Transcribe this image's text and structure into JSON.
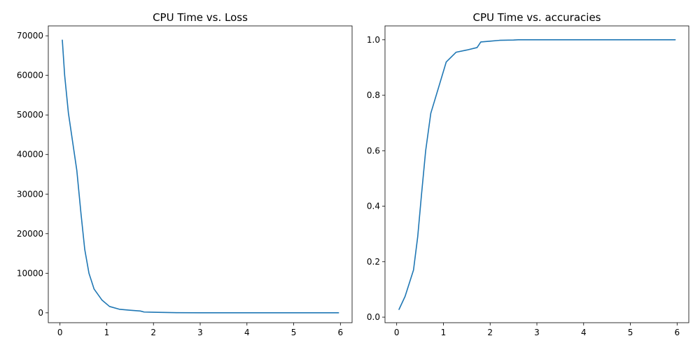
{
  "chart_data": [
    {
      "type": "line",
      "title": "CPU Time vs. Loss",
      "xlabel": "",
      "ylabel": "",
      "xlim": [
        -0.25,
        6.25
      ],
      "ylim": [
        -2500,
        72500
      ],
      "xticks": [
        0,
        1,
        2,
        3,
        4,
        5,
        6
      ],
      "yticks": [
        0,
        10000,
        20000,
        30000,
        40000,
        50000,
        60000,
        70000
      ],
      "grid": false,
      "legend": "none",
      "color": "#1f77b4",
      "series": [
        {
          "x": [
            0.05,
            0.1,
            0.18,
            0.36,
            0.45,
            0.53,
            0.62,
            0.73,
            0.9,
            1.06,
            1.27,
            1.5,
            1.72,
            1.8,
            2.0,
            2.2,
            2.5,
            3.0,
            4.0,
            5.0,
            5.96
          ],
          "y": [
            68900,
            60000,
            50500,
            36000,
            25000,
            16000,
            10000,
            6000,
            3200,
            1600,
            900,
            650,
            450,
            200,
            150,
            100,
            30,
            10,
            5,
            5,
            5
          ]
        }
      ]
    },
    {
      "type": "line",
      "title": "CPU Time vs. accuracies",
      "xlabel": "",
      "ylabel": "",
      "xlim": [
        -0.25,
        6.25
      ],
      "ylim": [
        -0.02,
        1.05
      ],
      "xticks": [
        0,
        1,
        2,
        3,
        4,
        5,
        6
      ],
      "yticks": [
        0.0,
        0.2,
        0.4,
        0.6,
        0.8,
        1.0
      ],
      "ytick_labels": [
        "0.0",
        "0.2",
        "0.4",
        "0.6",
        "0.8",
        "1.0"
      ],
      "grid": false,
      "legend": "none",
      "color": "#1f77b4",
      "series": [
        {
          "x": [
            0.05,
            0.18,
            0.36,
            0.45,
            0.53,
            0.62,
            0.73,
            0.9,
            1.06,
            1.27,
            1.5,
            1.72,
            1.8,
            2.0,
            2.2,
            2.5,
            2.6,
            3.0,
            4.0,
            5.0,
            5.96
          ],
          "y": [
            0.028,
            0.075,
            0.17,
            0.29,
            0.44,
            0.6,
            0.735,
            0.83,
            0.92,
            0.955,
            0.963,
            0.972,
            0.992,
            0.995,
            0.998,
            0.999,
            1.0,
            1.0,
            1.0,
            1.0,
            1.0
          ]
        }
      ]
    }
  ]
}
